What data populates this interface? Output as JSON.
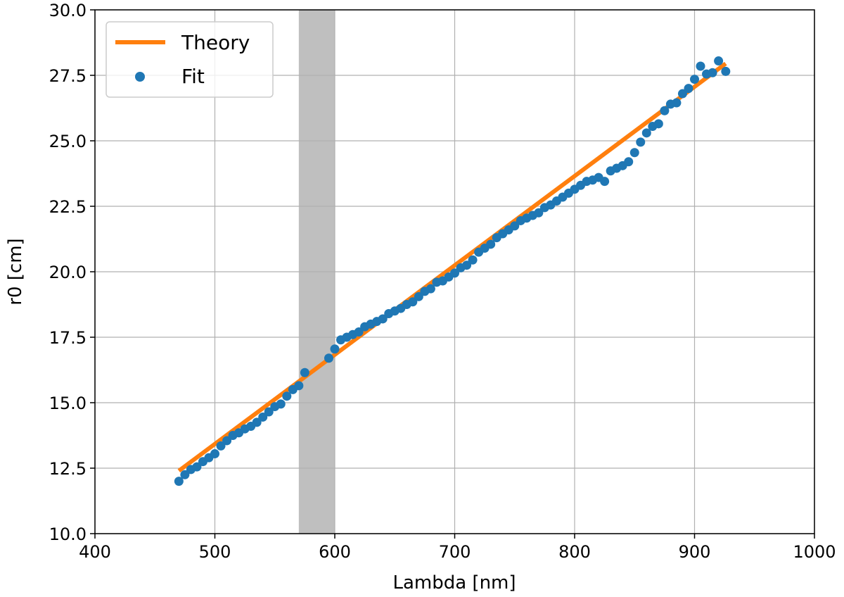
{
  "chart_data": {
    "type": "scatter",
    "xlabel": "Lambda [nm]",
    "ylabel": "r0 [cm]",
    "xlim": [
      400,
      1000
    ],
    "ylim": [
      10.0,
      30.0
    ],
    "x_ticks": [
      "400",
      "500",
      "600",
      "700",
      "800",
      "900",
      "1000"
    ],
    "y_ticks": [
      "10.0",
      "12.5",
      "15.0",
      "17.5",
      "20.0",
      "22.5",
      "25.0",
      "27.5",
      "30.0"
    ],
    "grid": true,
    "legend_position": "top-left",
    "shaded_region": {
      "x_range": [
        570,
        600
      ],
      "color": "#a9a9a9"
    },
    "series": [
      {
        "name": "Theory",
        "kind": "line",
        "color": "#ff7f0e",
        "x": [
          470,
          926
        ],
        "y": [
          12.4,
          27.95
        ]
      },
      {
        "name": "Fit",
        "kind": "scatter",
        "color": "#1f77b4",
        "x": [
          470,
          475,
          480,
          485,
          490,
          495,
          500,
          505,
          510,
          515,
          520,
          525,
          530,
          535,
          540,
          545,
          550,
          555,
          560,
          565,
          570,
          575,
          595,
          600,
          605,
          610,
          615,
          620,
          625,
          630,
          635,
          640,
          645,
          650,
          655,
          660,
          665,
          670,
          675,
          680,
          685,
          690,
          695,
          700,
          705,
          710,
          715,
          720,
          725,
          730,
          735,
          740,
          745,
          750,
          755,
          760,
          765,
          770,
          775,
          780,
          785,
          790,
          795,
          800,
          805,
          810,
          815,
          820,
          825,
          830,
          835,
          840,
          845,
          850,
          855,
          860,
          865,
          870,
          875,
          880,
          885,
          890,
          895,
          900,
          905,
          910,
          915,
          920,
          926
        ],
        "y": [
          12.0,
          12.25,
          12.45,
          12.55,
          12.75,
          12.9,
          13.05,
          13.35,
          13.55,
          13.75,
          13.85,
          14.0,
          14.1,
          14.25,
          14.45,
          14.65,
          14.85,
          14.95,
          15.25,
          15.5,
          15.65,
          16.15,
          16.7,
          17.05,
          17.4,
          17.5,
          17.6,
          17.7,
          17.9,
          18.0,
          18.1,
          18.2,
          18.4,
          18.5,
          18.6,
          18.75,
          18.85,
          19.05,
          19.25,
          19.35,
          19.6,
          19.65,
          19.8,
          19.95,
          20.15,
          20.25,
          20.45,
          20.75,
          20.9,
          21.05,
          21.3,
          21.45,
          21.6,
          21.75,
          21.95,
          22.05,
          22.15,
          22.25,
          22.45,
          22.55,
          22.7,
          22.85,
          23.0,
          23.15,
          23.3,
          23.45,
          23.5,
          23.6,
          23.45,
          23.85,
          23.95,
          24.05,
          24.2,
          24.55,
          24.95,
          25.3,
          25.55,
          25.65,
          26.15,
          26.4,
          26.45,
          26.8,
          27.0,
          27.35,
          27.85,
          27.55,
          27.6,
          28.05,
          27.65
        ]
      }
    ]
  }
}
